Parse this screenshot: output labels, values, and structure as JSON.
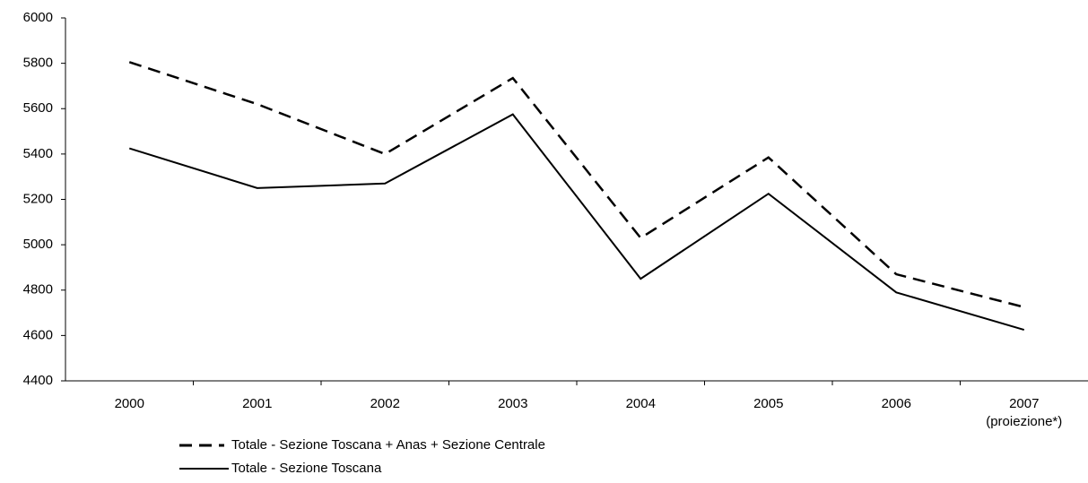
{
  "chart_data": {
    "type": "line",
    "categories": [
      "2000",
      "2001",
      "2002",
      "2003",
      "2004",
      "2005",
      "2006",
      "2007\n(proiezione*)"
    ],
    "series": [
      {
        "name": "Totale - Sezione Toscana + Anas + Sezione Centrale",
        "color": "#000000",
        "dashed": true,
        "values": [
          5805,
          5620,
          5400,
          5735,
          5030,
          5385,
          4870,
          4725
        ]
      },
      {
        "name": "Totale - Sezione Toscana",
        "color": "#000000",
        "dashed": false,
        "values": [
          5425,
          5250,
          5270,
          5575,
          4850,
          5225,
          4790,
          4625
        ]
      }
    ],
    "ylim": [
      4400,
      6000
    ],
    "yticks": [
      4400,
      4600,
      4800,
      5000,
      5200,
      5400,
      5600,
      5800,
      6000
    ],
    "grid": false
  }
}
